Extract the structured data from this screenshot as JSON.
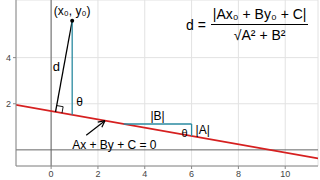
{
  "chart_data": {
    "type": "line",
    "x": [
      -1.5,
      11.4
    ],
    "values": [
      1.95,
      -0.37
    ],
    "color": "#d62020",
    "xlim": [
      -1.5,
      11.4
    ],
    "xticks": [
      0,
      2,
      4,
      6,
      8,
      10
    ],
    "ylim": [
      -0.7,
      6.5
    ],
    "yticks": [
      2,
      4
    ],
    "grid": true,
    "point": {
      "x": 0.9,
      "y": 5.6
    },
    "annotations": {
      "point_label": "(x₀, y₀)",
      "distance": "d",
      "angle": "θ",
      "equation": "Ax + By + C = 0",
      "run": "|B|",
      "rise": "|A|",
      "formula": {
        "lhs": "d =",
        "numerator": "|Ax₀ + By₀ + C|",
        "denominator": "√A² + B²"
      }
    }
  }
}
